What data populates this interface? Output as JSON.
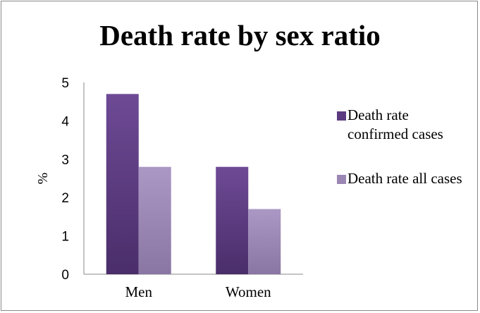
{
  "chart_data": {
    "type": "bar",
    "title": "Death rate by sex ratio",
    "ylabel": "%",
    "xlabel": "",
    "categories": [
      "Men",
      "Women"
    ],
    "series": [
      {
        "name": "Death rate confirmed cases",
        "values": [
          4.7,
          2.8
        ],
        "color": "#5c3a80"
      },
      {
        "name": "Death rate all cases",
        "values": [
          2.8,
          1.7
        ],
        "color": "#9b87b4"
      }
    ],
    "ylim": [
      0,
      5
    ],
    "yticks": [
      "0",
      "1",
      "2",
      "3",
      "4",
      "5"
    ],
    "grid": false,
    "legend_position": "right"
  }
}
